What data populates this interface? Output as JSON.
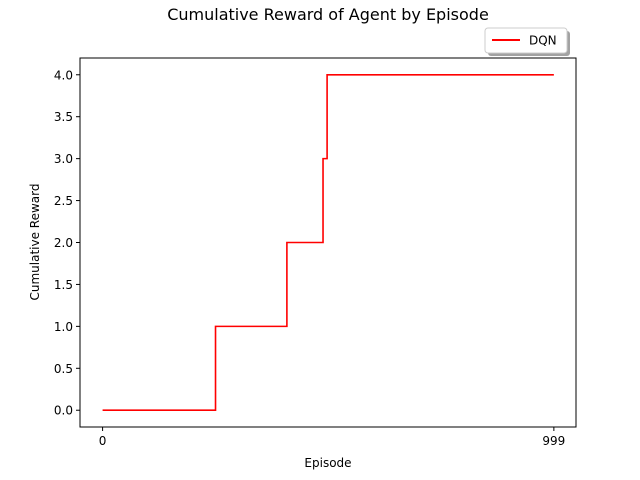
{
  "chart_data": {
    "type": "line",
    "title": "Cumulative Reward of Agent by Episode",
    "xlabel": "Episode",
    "ylabel": "Cumulative Reward",
    "xlim": [
      -50,
      1048
    ],
    "ylim": [
      -0.2,
      4.2
    ],
    "x_ticks": [
      0,
      999
    ],
    "x_tick_labels": [
      "0",
      "999"
    ],
    "y_ticks": [
      0.0,
      0.5,
      1.0,
      1.5,
      2.0,
      2.5,
      3.0,
      3.5,
      4.0
    ],
    "y_tick_labels": [
      "0.0",
      "0.5",
      "1.0",
      "1.5",
      "2.0",
      "2.5",
      "3.0",
      "3.5",
      "4.0"
    ],
    "grid": false,
    "legend": {
      "placement": "top-right, above axes",
      "shadow": true
    },
    "series": [
      {
        "name": "DQN",
        "color": "#ff0000",
        "step": "post",
        "x": [
          0,
          250,
          408,
          488,
          497,
          999
        ],
        "y": [
          0,
          1,
          2,
          3,
          4,
          4
        ]
      }
    ]
  }
}
